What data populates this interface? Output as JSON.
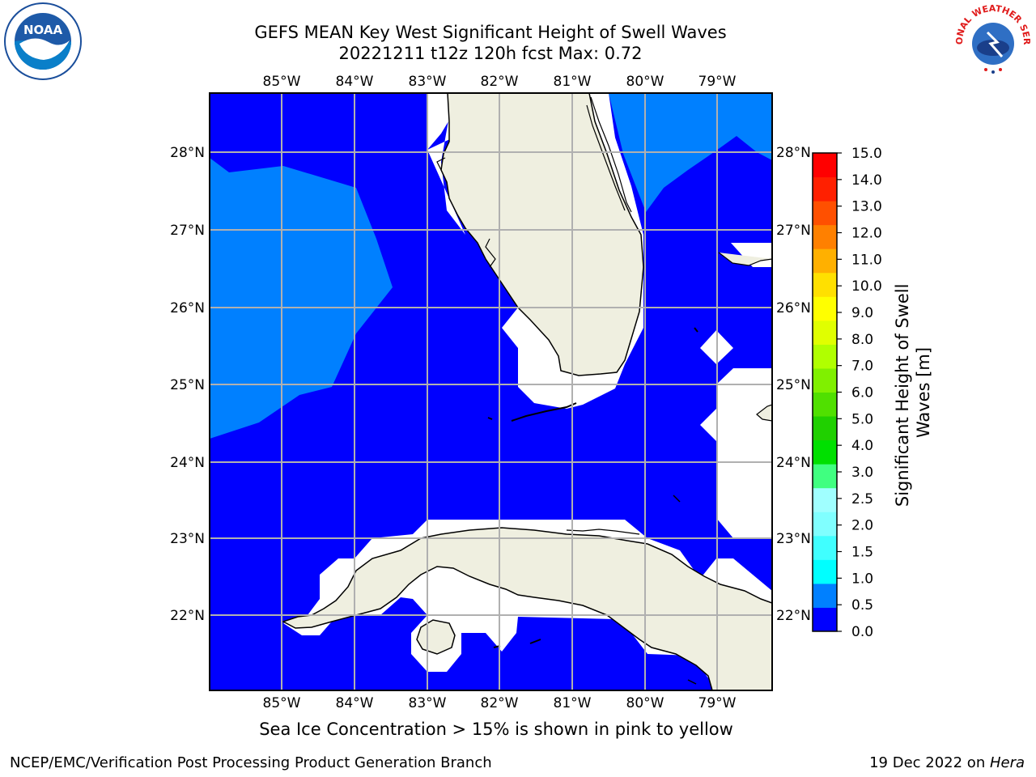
{
  "header": {
    "title_line1": "GEFS MEAN Key West Significant Height of Swell Waves",
    "title_line2": "20221211 t12z 120h fcst   Max: 0.72"
  },
  "logos": {
    "left": "noaa-logo",
    "left_text": "NOAA",
    "right": "national-weather-service-logo",
    "right_text": "NATIONAL WEATHER SERVICE"
  },
  "map": {
    "region": "Florida / Cuba",
    "lon_labels": [
      "85°W",
      "84°W",
      "83°W",
      "82°W",
      "81°W",
      "80°W",
      "79°W"
    ],
    "lat_labels": [
      "28°N",
      "27°N",
      "26°N",
      "25°N",
      "24°N",
      "23°N",
      "22°N"
    ],
    "colors": {
      "swell_0_0p5": "#0000ff",
      "swell_0p5_1p0": "#0080ff",
      "land": "#efefe0",
      "grid": "#b0b0b0"
    }
  },
  "colorbar": {
    "label": "Significant Height of Swell Waves [m]",
    "ticks": [
      "0.0",
      "0.5",
      "1.0",
      "1.5",
      "2.0",
      "2.5",
      "3.0",
      "4.0",
      "5.0",
      "6.0",
      "7.0",
      "8.0",
      "9.0",
      "10.0",
      "11.0",
      "12.0",
      "13.0",
      "14.0",
      "15.0"
    ],
    "colors": [
      "#0000ff",
      "#0080ff",
      "#00ffff",
      "#40ffff",
      "#80ffff",
      "#a0ffff",
      "#40ff80",
      "#00e000",
      "#20d000",
      "#50e000",
      "#80f000",
      "#b0ff00",
      "#e0ff00",
      "#ffff00",
      "#ffe000",
      "#ffb000",
      "#ff8000",
      "#ff5000",
      "#ff2000",
      "#ff0000"
    ]
  },
  "bottom_note": "Sea Ice Concentration > 15% is shown in pink to yellow",
  "footer": {
    "left": "NCEP/EMC/Verification Post Processing Product Generation Branch",
    "right_date": "19 Dec 2022 on ",
    "right_host": "Hera"
  }
}
